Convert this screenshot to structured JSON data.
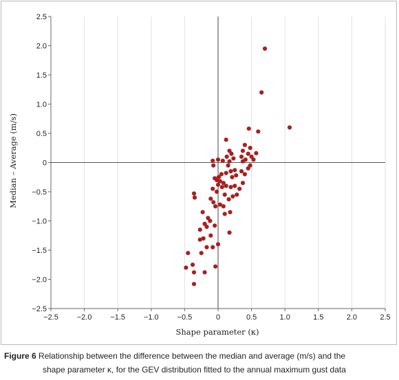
{
  "chart_data": {
    "type": "scatter",
    "title": "",
    "xlabel": "Shape parameter (κ)",
    "ylabel": "Median – Average (m/s)",
    "xlim": [
      -2.5,
      2.5
    ],
    "ylim": [
      -2.5,
      2.5
    ],
    "x_ticks": [
      "−2.5",
      "−2.0",
      "−1.5",
      "−1.0",
      "−0.5",
      "0",
      "0.5",
      "1.0",
      "1.5",
      "2.0",
      "2.5"
    ],
    "y_ticks": [
      "2.5",
      "2.0",
      "1.5",
      "1.0",
      "0.5",
      "0",
      "−0.5",
      "−1.0",
      "−1.5",
      "−2.0",
      "−2.5"
    ],
    "grid": "vertical",
    "marker_color": "#a82020",
    "series": [
      {
        "points": [
          [
            0.7,
            1.95
          ],
          [
            0.65,
            1.2
          ],
          [
            1.07,
            0.6
          ],
          [
            0.6,
            0.53
          ],
          [
            0.46,
            0.58
          ],
          [
            0.4,
            0.3
          ],
          [
            0.48,
            0.25
          ],
          [
            0.37,
            0.2
          ],
          [
            0.45,
            0.15
          ],
          [
            0.57,
            0.16
          ],
          [
            0.5,
            0.1
          ],
          [
            0.35,
            0.1
          ],
          [
            0.53,
            0.05
          ],
          [
            0.41,
            0.05
          ],
          [
            0.37,
            0.02
          ],
          [
            0.48,
            -0.05
          ],
          [
            0.45,
            -0.1
          ],
          [
            0.35,
            -0.15
          ],
          [
            0.4,
            -0.2
          ],
          [
            0.37,
            -0.35
          ],
          [
            0.12,
            0.39
          ],
          [
            0.17,
            0.2
          ],
          [
            0.2,
            0.15
          ],
          [
            0.13,
            0.1
          ],
          [
            0.23,
            0.07
          ],
          [
            0.17,
            0.02
          ],
          [
            0.07,
            0.03
          ],
          [
            0.0,
            0.05
          ],
          [
            -0.08,
            0.03
          ],
          [
            -0.07,
            -0.05
          ],
          [
            0.15,
            -0.05
          ],
          [
            0.25,
            -0.13
          ],
          [
            0.19,
            -0.15
          ],
          [
            0.12,
            -0.18
          ],
          [
            0.05,
            -0.2
          ],
          [
            0.27,
            -0.22
          ],
          [
            0.21,
            -0.25
          ],
          [
            0.01,
            -0.25
          ],
          [
            -0.05,
            -0.27
          ],
          [
            -0.02,
            -0.3
          ],
          [
            0.03,
            -0.32
          ],
          [
            0.08,
            -0.35
          ],
          [
            0.0,
            -0.38
          ],
          [
            0.25,
            -0.4
          ],
          [
            0.19,
            -0.42
          ],
          [
            0.06,
            -0.42
          ],
          [
            -0.08,
            -0.45
          ],
          [
            -0.02,
            -0.5
          ],
          [
            0.28,
            -0.55
          ],
          [
            0.22,
            -0.58
          ],
          [
            0.12,
            -0.4
          ],
          [
            0.1,
            -0.55
          ],
          [
            0.32,
            -0.45
          ],
          [
            0.16,
            -0.63
          ],
          [
            -0.11,
            -0.62
          ],
          [
            -0.36,
            -0.53
          ],
          [
            -0.35,
            -0.6
          ],
          [
            -0.07,
            -0.68
          ],
          [
            0.03,
            -0.72
          ],
          [
            -0.04,
            -0.75
          ],
          [
            0.08,
            -0.75
          ],
          [
            0.18,
            -0.85
          ],
          [
            0.1,
            -0.88
          ],
          [
            -0.23,
            -0.85
          ],
          [
            -0.15,
            -0.95
          ],
          [
            -0.12,
            -1.0
          ],
          [
            -0.2,
            -1.05
          ],
          [
            -0.05,
            -1.08
          ],
          [
            -0.17,
            -1.1
          ],
          [
            -0.27,
            -1.15
          ],
          [
            0.17,
            -1.2
          ],
          [
            -0.11,
            -1.25
          ],
          [
            -0.22,
            -1.3
          ],
          [
            -0.27,
            -1.32
          ],
          [
            0.0,
            -1.4
          ],
          [
            -0.08,
            -1.45
          ],
          [
            -0.17,
            -1.45
          ],
          [
            -0.45,
            -1.55
          ],
          [
            -0.25,
            -1.55
          ],
          [
            -0.38,
            -1.75
          ],
          [
            -0.48,
            -1.8
          ],
          [
            -0.04,
            -1.78
          ],
          [
            -0.2,
            -1.88
          ],
          [
            -0.36,
            -1.88
          ],
          [
            -0.36,
            -2.08
          ]
        ]
      }
    ]
  },
  "caption": {
    "label": "Figure 6",
    "line1": " Relationship between the difference between the median and average (m/s) and the",
    "line2": "shape parameter κ, for the GEV distribution fitted to the annual maximum gust data"
  }
}
